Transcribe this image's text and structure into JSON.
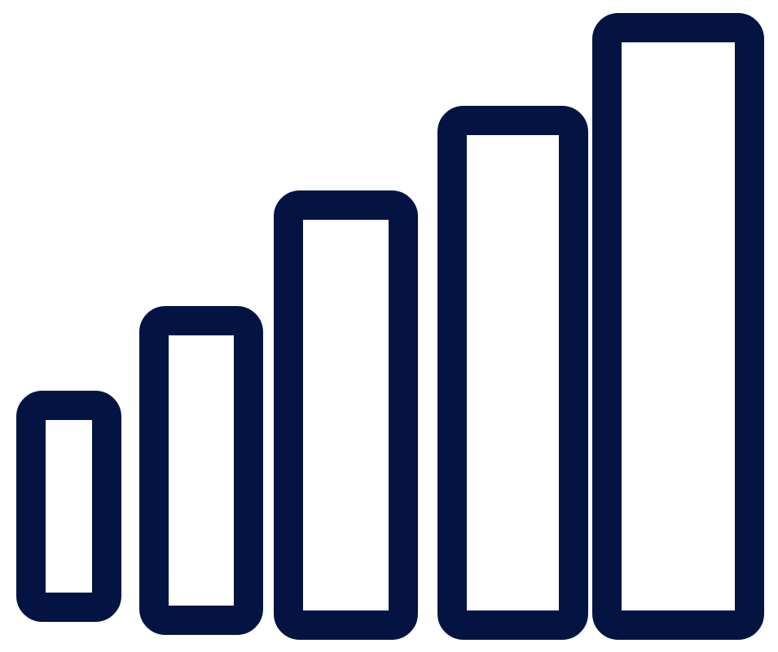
{
  "graphic": {
    "icon": "signal-strength-bars-icon",
    "stroke_color": "#031443",
    "fill_color": "#ffffff",
    "background": "#ffffff",
    "bar_count": 5,
    "relative_bar_heights": [
      0.36,
      0.5,
      0.7,
      0.84,
      1.0
    ]
  }
}
